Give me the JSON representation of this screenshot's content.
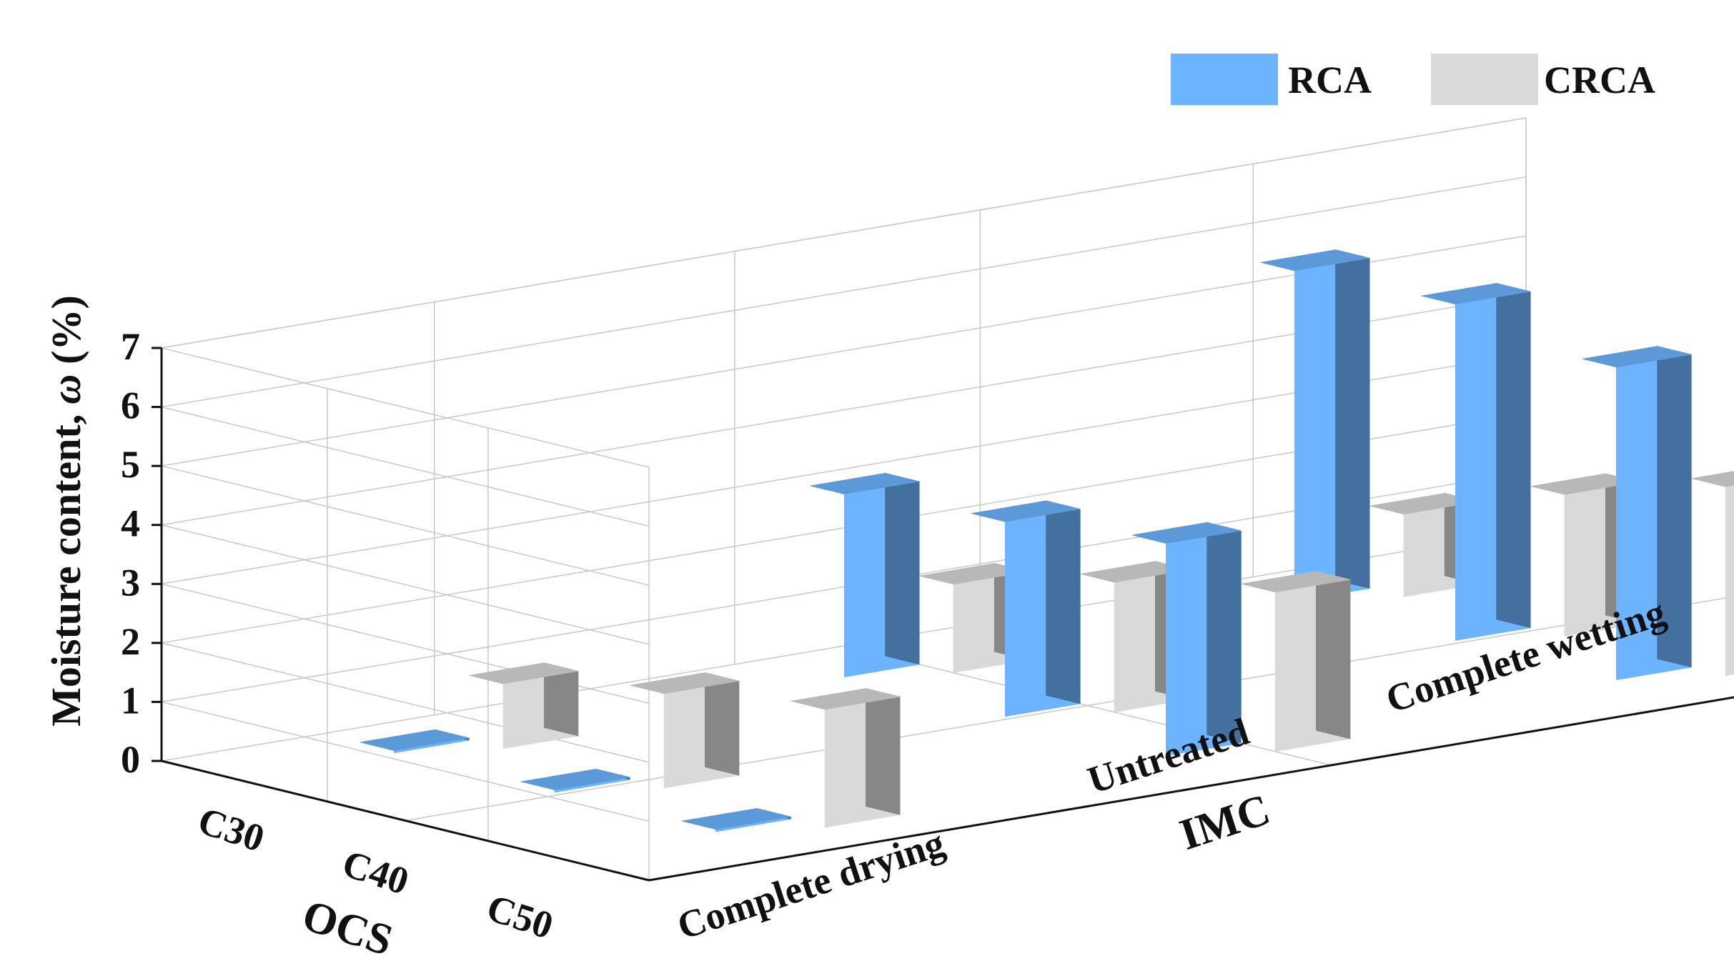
{
  "chart_data": {
    "type": "bar3d",
    "zlabel": "Moisture content, ω (%)",
    "zlabel_main": "Moisture content,",
    "zlabel_symbol": "ω",
    "zlabel_unit": "(%)",
    "xlabel": "IMC",
    "ylabel": "OCS",
    "zlim": [
      0,
      7
    ],
    "z_ticks": [
      "0",
      "1",
      "2",
      "3",
      "4",
      "5",
      "6",
      "7"
    ],
    "x_categories": [
      "Complete drying",
      "Untreated",
      "Complete wetting"
    ],
    "y_categories": [
      "C30",
      "C40",
      "C50"
    ],
    "legend_position": "top-right",
    "grid": true,
    "series": [
      {
        "name": "RCA",
        "color": "#6cb4ff",
        "values": [
          [
            0.0,
            0.0,
            0.0
          ],
          [
            3.1,
            3.3,
            3.6
          ],
          [
            5.6,
            5.7,
            5.3
          ]
        ]
      },
      {
        "name": "CRCA",
        "color": "#d9d9d9",
        "values": [
          [
            1.1,
            1.6,
            2.0
          ],
          [
            1.5,
            2.2,
            2.7
          ],
          [
            1.4,
            2.4,
            3.2
          ]
        ]
      }
    ]
  }
}
